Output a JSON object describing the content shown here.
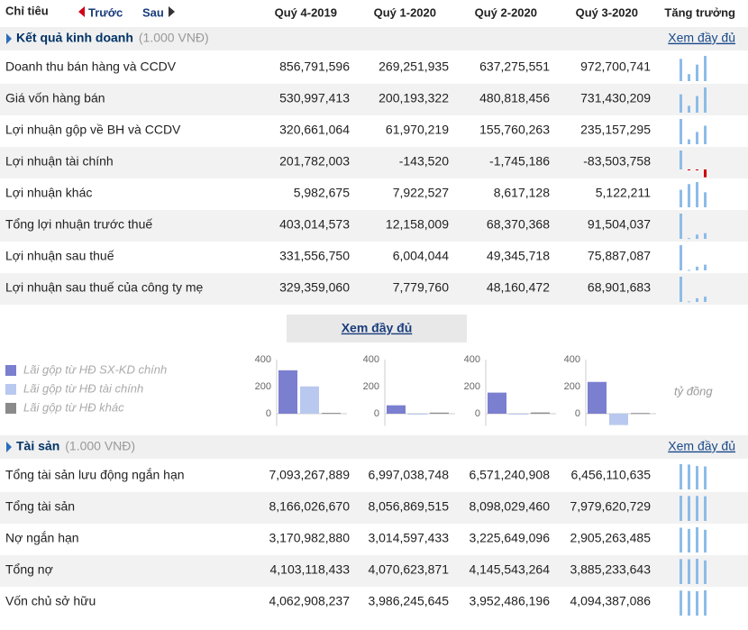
{
  "header": {
    "col_label": "Chỉ tiêu",
    "prev": "Trước",
    "next": "Sau",
    "periods": [
      "Quý 4-2019",
      "Quý 1-2020",
      "Quý 2-2020",
      "Quý 3-2020"
    ],
    "growth": "Tăng trưởng"
  },
  "sections": [
    {
      "title": "Kết quả kinh doanh",
      "unit": "(1.000 VNĐ)",
      "link": "Xem đầy đủ",
      "rows": [
        {
          "label": "Doanh thu bán hàng và CCDV",
          "values": [
            856791596,
            269251935,
            637275551,
            972700741
          ],
          "value_labels": [
            "856,791,596",
            "269,251,935",
            "637,275,551",
            "972,700,741"
          ]
        },
        {
          "label": "Giá vốn hàng bán",
          "values": [
            530997413,
            200193322,
            480818456,
            731430209
          ],
          "value_labels": [
            "530,997,413",
            "200,193,322",
            "480,818,456",
            "731,430,209"
          ]
        },
        {
          "label": "Lợi nhuận gộp về BH và CCDV",
          "values": [
            320661064,
            61970219,
            155760263,
            235157295
          ],
          "value_labels": [
            "320,661,064",
            "61,970,219",
            "155,760,263",
            "235,157,295"
          ]
        },
        {
          "label": "Lợi nhuận tài chính",
          "values": [
            201782003,
            -143520,
            -1745186,
            -83503758
          ],
          "value_labels": [
            "201,782,003",
            "-143,520",
            "-1,745,186",
            "-83,503,758"
          ]
        },
        {
          "label": "Lợi nhuận khác",
          "values": [
            5982675,
            7922527,
            8617128,
            5122211
          ],
          "value_labels": [
            "5,982,675",
            "7,922,527",
            "8,617,128",
            "5,122,211"
          ]
        },
        {
          "label": "Tổng lợi nhuận trước thuế",
          "values": [
            403014573,
            12158009,
            68370368,
            91504037
          ],
          "value_labels": [
            "403,014,573",
            "12,158,009",
            "68,370,368",
            "91,504,037"
          ]
        },
        {
          "label": "Lợi nhuận sau thuế",
          "values": [
            331556750,
            6004044,
            49345718,
            75887087
          ],
          "value_labels": [
            "331,556,750",
            "6,004,044",
            "49,345,718",
            "75,887,087"
          ]
        },
        {
          "label": "Lợi nhuận sau thuế của công ty mẹ",
          "values": [
            329359060,
            7779760,
            48160472,
            68901683
          ],
          "value_labels": [
            "329,359,060",
            "7,779,760",
            "48,160,472",
            "68,901,683"
          ]
        }
      ]
    },
    {
      "title": "Tài sản",
      "unit": "(1.000 VNĐ)",
      "link": "Xem đầy đủ",
      "rows": [
        {
          "label": "Tổng tài sản lưu động ngắn hạn",
          "values": [
            7093267889,
            6997038748,
            6571240908,
            6456110635
          ],
          "value_labels": [
            "7,093,267,889",
            "6,997,038,748",
            "6,571,240,908",
            "6,456,110,635"
          ]
        },
        {
          "label": "Tổng tài sản",
          "values": [
            8166026670,
            8056869515,
            8098029460,
            7979620729
          ],
          "value_labels": [
            "8,166,026,670",
            "8,056,869,515",
            "8,098,029,460",
            "7,979,620,729"
          ]
        },
        {
          "label": "Nợ ngắn hạn",
          "values": [
            3170982880,
            3014597433,
            3225649096,
            2905263485
          ],
          "value_labels": [
            "3,170,982,880",
            "3,014,597,433",
            "3,225,649,096",
            "2,905,263,485"
          ]
        },
        {
          "label": "Tổng nợ",
          "values": [
            4103118433,
            4070623871,
            4145543264,
            3885233643
          ],
          "value_labels": [
            "4,103,118,433",
            "4,070,623,871",
            "4,145,543,264",
            "3,885,233,643"
          ]
        },
        {
          "label": "Vốn chủ sở hữu",
          "values": [
            4062908237,
            3986245645,
            3952486196,
            4094387086
          ],
          "value_labels": [
            "4,062,908,237",
            "3,986,245,645",
            "3,952,486,196",
            "4,094,387,086"
          ]
        }
      ]
    }
  ],
  "more_button": "Xem đầy đủ",
  "chart_data": {
    "type": "bar",
    "series": [
      {
        "name": "Lãi gộp từ HĐ SX-KD chính",
        "color": "#7b7fcf",
        "values": [
          321,
          62,
          156,
          235
        ]
      },
      {
        "name": "Lãi gộp từ HĐ tài chính",
        "color": "#b9c8ee",
        "values": [
          202,
          0,
          -2,
          -84
        ]
      },
      {
        "name": "Lãi gộp từ HĐ khác",
        "color": "#8a8a8a",
        "values": [
          6,
          8,
          9,
          5
        ]
      }
    ],
    "ylim": [
      -90,
      400
    ],
    "yticks": [
      0,
      200,
      400
    ],
    "unit_label": "tỷ đồng"
  }
}
